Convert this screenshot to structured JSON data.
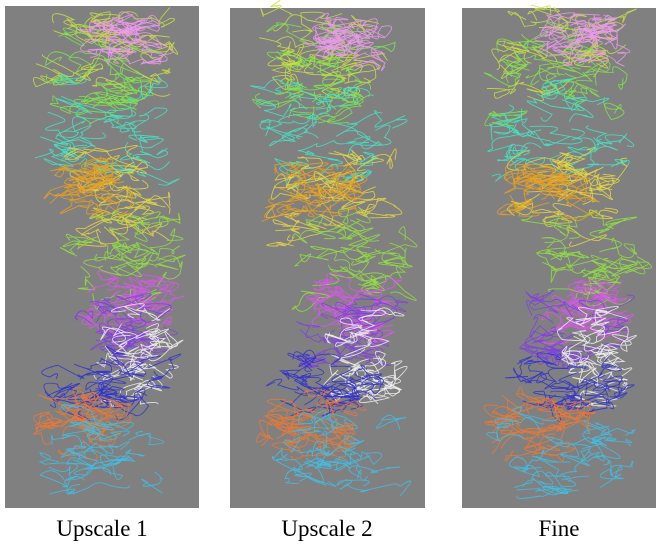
{
  "panels": [
    {
      "caption": "Upscale 1"
    },
    {
      "caption": "Upscale 2"
    },
    {
      "caption": "Fine"
    }
  ]
}
